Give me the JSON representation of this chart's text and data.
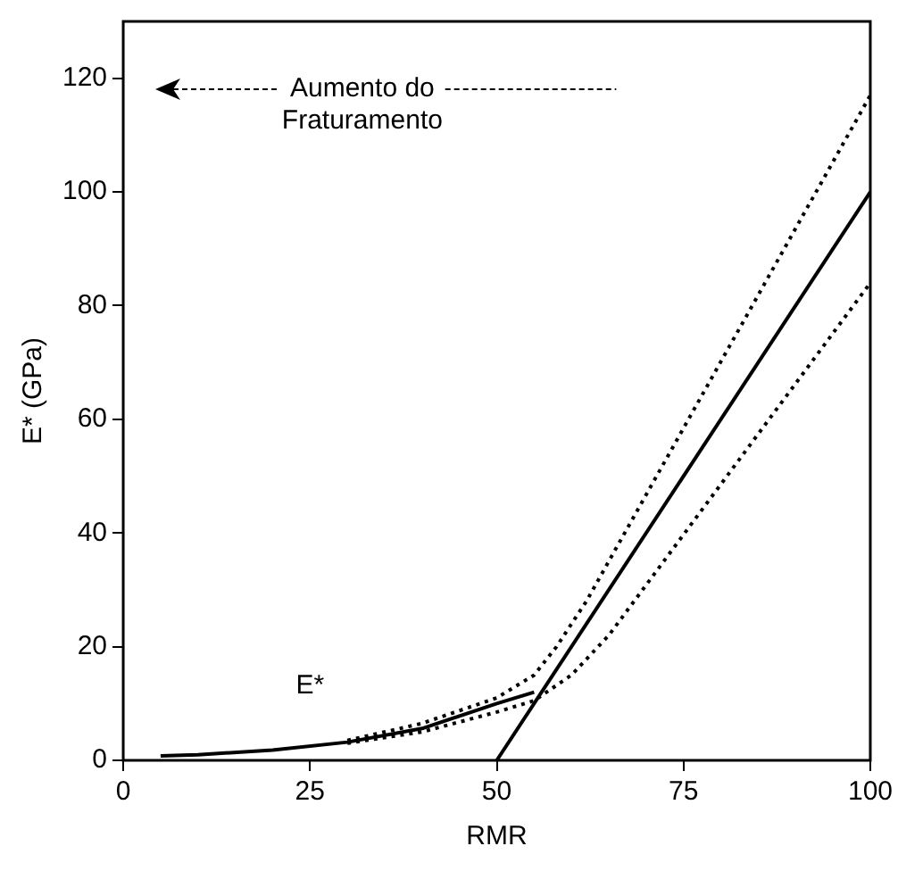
{
  "chart_data": {
    "type": "line",
    "xlabel": "RMR",
    "ylabel": "E* (GPa)",
    "xlim": [
      0,
      100
    ],
    "xticks": [
      0,
      25,
      50,
      75,
      100
    ],
    "ylim": [
      0,
      130
    ],
    "yticks": [
      0,
      20,
      40,
      60,
      80,
      100,
      120
    ],
    "grid": false,
    "legend": false,
    "marker": "none",
    "series": [
      {
        "color": "#000000",
        "line_style": "solid",
        "x": [
          5,
          10,
          20,
          30,
          40,
          50,
          55
        ],
        "values": [
          0.8,
          1,
          1.8,
          3.2,
          5.6,
          10,
          12
        ]
      },
      {
        "color": "#000000",
        "line_style": "solid",
        "x": [
          50,
          100
        ],
        "values": [
          0,
          100
        ]
      },
      {
        "color": "#000000",
        "line_style": "dotted",
        "x": [
          30,
          40,
          50,
          55,
          58,
          62,
          100
        ],
        "values": [
          3.5,
          6.5,
          11,
          15,
          20,
          28,
          117
        ]
      },
      {
        "color": "#000000",
        "line_style": "dotted",
        "x": [
          30,
          40,
          50,
          55,
          60,
          65,
          100
        ],
        "values": [
          3,
          5,
          8.5,
          10.5,
          15,
          22,
          84
        ]
      }
    ],
    "annotations": [
      "Aumento do Fraturamento",
      "E*"
    ]
  }
}
